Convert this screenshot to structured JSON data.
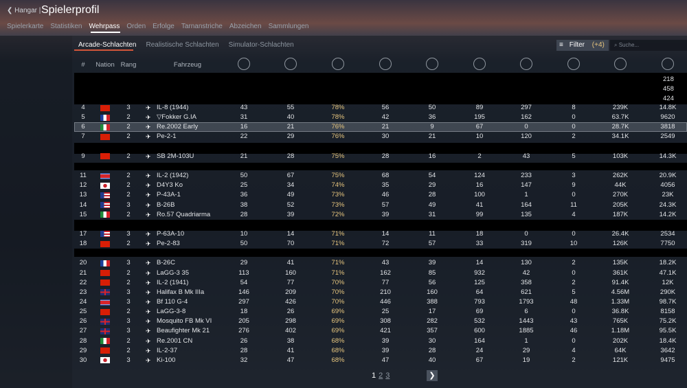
{
  "header": {
    "back": "Hangar",
    "title": "Spielerprofil"
  },
  "tabs": [
    "Spielerkarte",
    "Statistiken",
    "Wehrpass",
    "Orden",
    "Erfolge",
    "Tarnanstriche",
    "Abzeichen",
    "Sammlungen"
  ],
  "subtabs": [
    "Arcade-Schlachten",
    "Realistische Schlachten",
    "Simulator-Schlachten"
  ],
  "filter": {
    "label": "Filter",
    "count": "(+4)",
    "search": "Suche..."
  },
  "table": {
    "columns": [
      "#",
      "Nation",
      "Rang",
      "Fahrzeug"
    ],
    "partial_values": [
      "218",
      "458",
      "424"
    ],
    "rows": [
      {
        "num": "4",
        "nation": "cn",
        "rank": "3",
        "vehicle": "IL-8 (1944)",
        "stats": [
          "43",
          "55",
          "78%",
          "56",
          "50",
          "89",
          "297",
          "8",
          "239K",
          "14.8K"
        ]
      },
      {
        "num": "5",
        "nation": "fr",
        "rank": "2",
        "vehicle": "▽Fokker G.IA",
        "stats": [
          "31",
          "40",
          "78%",
          "42",
          "36",
          "195",
          "162",
          "0",
          "63.7K",
          "9620"
        ]
      },
      {
        "num": "6",
        "nation": "it",
        "rank": "2",
        "vehicle": "Re.2002 Early",
        "stats": [
          "16",
          "21",
          "76%",
          "21",
          "9",
          "67",
          "0",
          "0",
          "28.7K",
          "3818"
        ]
      },
      {
        "num": "7",
        "nation": "cn",
        "rank": "2",
        "vehicle": "Pe-2-1",
        "stats": [
          "22",
          "29",
          "76%",
          "30",
          "21",
          "10",
          "120",
          "2",
          "34.1K",
          "2549"
        ]
      },
      {
        "num": "9",
        "nation": "cn",
        "rank": "2",
        "vehicle": "SB 2M-103U",
        "stats": [
          "21",
          "28",
          "75%",
          "28",
          "16",
          "2",
          "43",
          "5",
          "103K",
          "14.3K"
        ]
      },
      {
        "num": "11",
        "nation": "kp",
        "rank": "2",
        "vehicle": "IL-2 (1942)",
        "stats": [
          "50",
          "67",
          "75%",
          "68",
          "54",
          "124",
          "233",
          "3",
          "262K",
          "20.9K"
        ]
      },
      {
        "num": "12",
        "nation": "jp",
        "rank": "2",
        "vehicle": "D4Y3 Ko",
        "stats": [
          "25",
          "34",
          "74%",
          "35",
          "29",
          "16",
          "147",
          "9",
          "44K",
          "4056"
        ]
      },
      {
        "num": "13",
        "nation": "us",
        "rank": "2",
        "vehicle": "P-43A-1",
        "stats": [
          "36",
          "49",
          "73%",
          "46",
          "28",
          "100",
          "1",
          "0",
          "270K",
          "23K"
        ]
      },
      {
        "num": "14",
        "nation": "us",
        "rank": "3",
        "vehicle": "B-26B",
        "stats": [
          "38",
          "52",
          "73%",
          "57",
          "49",
          "41",
          "164",
          "11",
          "205K",
          "24.3K"
        ]
      },
      {
        "num": "15",
        "nation": "it",
        "rank": "2",
        "vehicle": "Ro.57 Quadriarma",
        "stats": [
          "28",
          "39",
          "72%",
          "39",
          "31",
          "99",
          "135",
          "4",
          "187K",
          "14.2K"
        ]
      },
      {
        "num": "17",
        "nation": "us",
        "rank": "3",
        "vehicle": "P-63A-10",
        "stats": [
          "10",
          "14",
          "71%",
          "14",
          "11",
          "18",
          "0",
          "0",
          "26.4K",
          "2534"
        ]
      },
      {
        "num": "18",
        "nation": "cn",
        "rank": "2",
        "vehicle": "Pe-2-83",
        "stats": [
          "50",
          "70",
          "71%",
          "72",
          "57",
          "33",
          "319",
          "10",
          "126K",
          "7750"
        ]
      },
      {
        "num": "20",
        "nation": "fr",
        "rank": "3",
        "vehicle": "B-26C",
        "stats": [
          "29",
          "41",
          "71%",
          "43",
          "39",
          "14",
          "130",
          "2",
          "135K",
          "18.2K"
        ]
      },
      {
        "num": "21",
        "nation": "cn",
        "rank": "2",
        "vehicle": "LaGG-3 35",
        "stats": [
          "113",
          "160",
          "71%",
          "162",
          "85",
          "932",
          "42",
          "0",
          "361K",
          "47.1K"
        ]
      },
      {
        "num": "22",
        "nation": "cn",
        "rank": "2",
        "vehicle": "IL-2 (1941)",
        "stats": [
          "54",
          "77",
          "70%",
          "77",
          "56",
          "125",
          "358",
          "2",
          "91.4K",
          "12K"
        ]
      },
      {
        "num": "23",
        "nation": "uk",
        "rank": "3",
        "vehicle": "Halifax B Mk IIIa",
        "stats": [
          "146",
          "209",
          "70%",
          "210",
          "160",
          "64",
          "621",
          "5",
          "4.56M",
          "290K"
        ]
      },
      {
        "num": "24",
        "nation": "kp",
        "rank": "3",
        "vehicle": "Bf 110 G-4",
        "stats": [
          "297",
          "426",
          "70%",
          "446",
          "388",
          "793",
          "1793",
          "48",
          "1.33M",
          "98.7K"
        ]
      },
      {
        "num": "25",
        "nation": "cn",
        "rank": "2",
        "vehicle": "LaGG-3-8",
        "stats": [
          "18",
          "26",
          "69%",
          "25",
          "17",
          "69",
          "6",
          "0",
          "36.8K",
          "8158"
        ]
      },
      {
        "num": "26",
        "nation": "uk",
        "rank": "3",
        "vehicle": "Mosquito FB Mk VI",
        "stats": [
          "205",
          "298",
          "69%",
          "308",
          "282",
          "532",
          "1443",
          "43",
          "765K",
          "75.2K"
        ]
      },
      {
        "num": "27",
        "nation": "uk",
        "rank": "3",
        "vehicle": "Beaufighter Mk 21",
        "stats": [
          "276",
          "402",
          "69%",
          "421",
          "357",
          "600",
          "1885",
          "46",
          "1.18M",
          "95.5K"
        ]
      },
      {
        "num": "28",
        "nation": "it",
        "rank": "2",
        "vehicle": "Re.2001 CN",
        "stats": [
          "26",
          "38",
          "68%",
          "39",
          "30",
          "164",
          "1",
          "0",
          "202K",
          "18.4K"
        ]
      },
      {
        "num": "29",
        "nation": "cn",
        "rank": "2",
        "vehicle": "IL-2-37",
        "stats": [
          "28",
          "41",
          "68%",
          "39",
          "28",
          "24",
          "29",
          "4",
          "64K",
          "3642"
        ]
      },
      {
        "num": "30",
        "nation": "jp",
        "rank": "3",
        "vehicle": "Ki-100",
        "stats": [
          "32",
          "47",
          "68%",
          "47",
          "40",
          "67",
          "19",
          "2",
          "121K",
          "9475"
        ]
      }
    ]
  },
  "pagination": [
    "1",
    "2",
    "3"
  ]
}
